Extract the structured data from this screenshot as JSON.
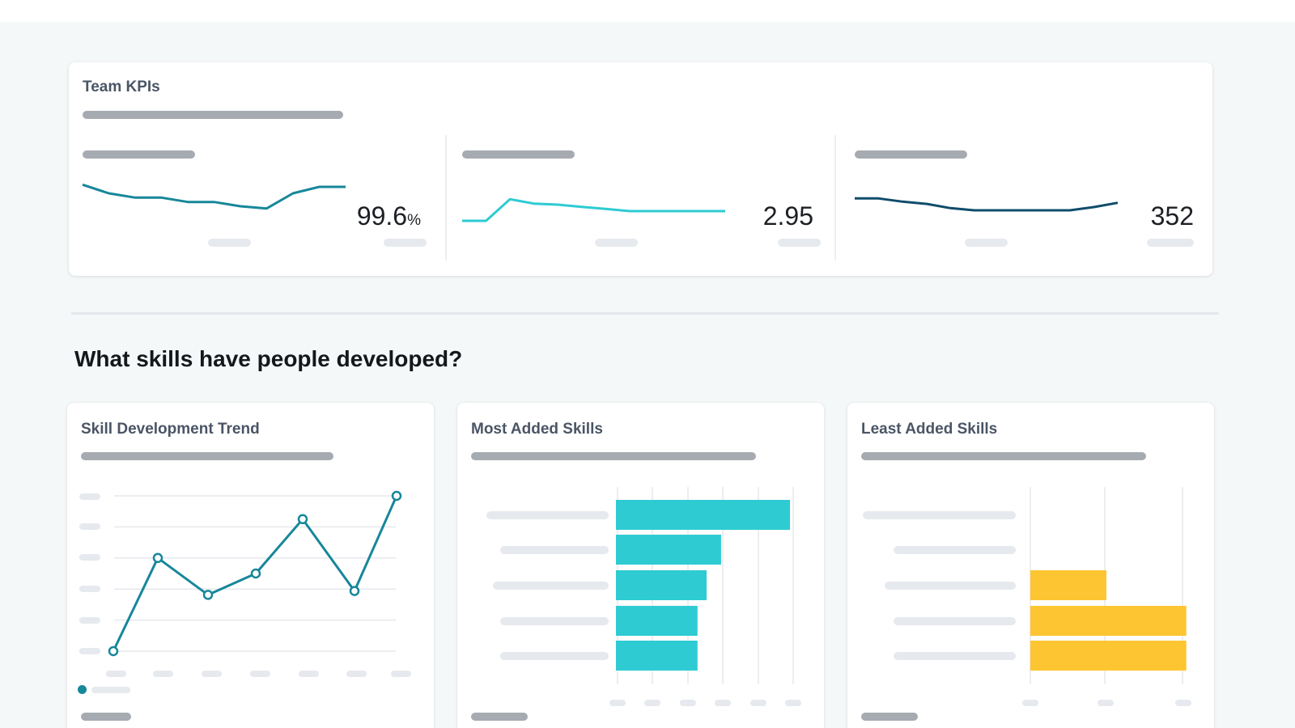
{
  "colors": {
    "teal": "#17879a",
    "cyan": "#2ecbd3",
    "navy": "#0f4d6b",
    "yellow": "#fdc531",
    "grid": "#e5e8ec",
    "card_title": "#4a5565"
  },
  "kpi_card": {
    "title": "Team KPIs",
    "kpis": [
      {
        "value": "99.6",
        "unit": "%",
        "sparkline": [
          26,
          18,
          14,
          14,
          10,
          10,
          6,
          4,
          18,
          24,
          24
        ],
        "color": "#17879a",
        "icon": "sparkline-icon"
      },
      {
        "value": "2.95",
        "unit": "",
        "sparkline": [
          6,
          6,
          26,
          22,
          21,
          19,
          17,
          15,
          15,
          15,
          15,
          15
        ],
        "color": "#2ecbd3",
        "icon": "sparkline-icon"
      },
      {
        "value": "352",
        "unit": "",
        "sparkline": [
          20,
          20,
          17,
          15,
          11,
          9,
          9,
          9,
          9,
          9,
          12,
          16
        ],
        "color": "#0f4d6b",
        "icon": "sparkline-icon"
      }
    ]
  },
  "section": {
    "title": "What skills have people developed?"
  },
  "trend_card": {
    "title": "Skill Development Trend",
    "legend_icon": "legend-dot-icon"
  },
  "most_card": {
    "title": "Most Added Skills"
  },
  "least_card": {
    "title": "Least Added Skills"
  },
  "chart_data": [
    {
      "type": "line",
      "title": "Skill Development Trend",
      "x": [
        1,
        2,
        3,
        4,
        5,
        6,
        7
      ],
      "series": [
        {
          "name": "",
          "values": [
            1.0,
            5.8,
            3.9,
            5.0,
            7.8,
            4.1,
            9.0
          ]
        }
      ],
      "ylim": [
        1,
        9
      ],
      "grid": true,
      "color": "#17879a"
    },
    {
      "type": "bar",
      "orientation": "horizontal",
      "title": "Most Added Skills",
      "categories": [
        "",
        "",
        "",
        "",
        ""
      ],
      "values": [
        4.8,
        2.9,
        2.5,
        2.25,
        2.25
      ],
      "xlim": [
        0,
        5
      ],
      "grid": true,
      "color": "#2ecbd3"
    },
    {
      "type": "bar",
      "orientation": "horizontal",
      "title": "Least Added Skills",
      "categories": [
        "",
        "",
        "",
        "",
        ""
      ],
      "values": [
        0,
        0,
        1,
        2.05,
        2.05
      ],
      "xlim": [
        0,
        2
      ],
      "grid": true,
      "color": "#fdc531"
    }
  ]
}
